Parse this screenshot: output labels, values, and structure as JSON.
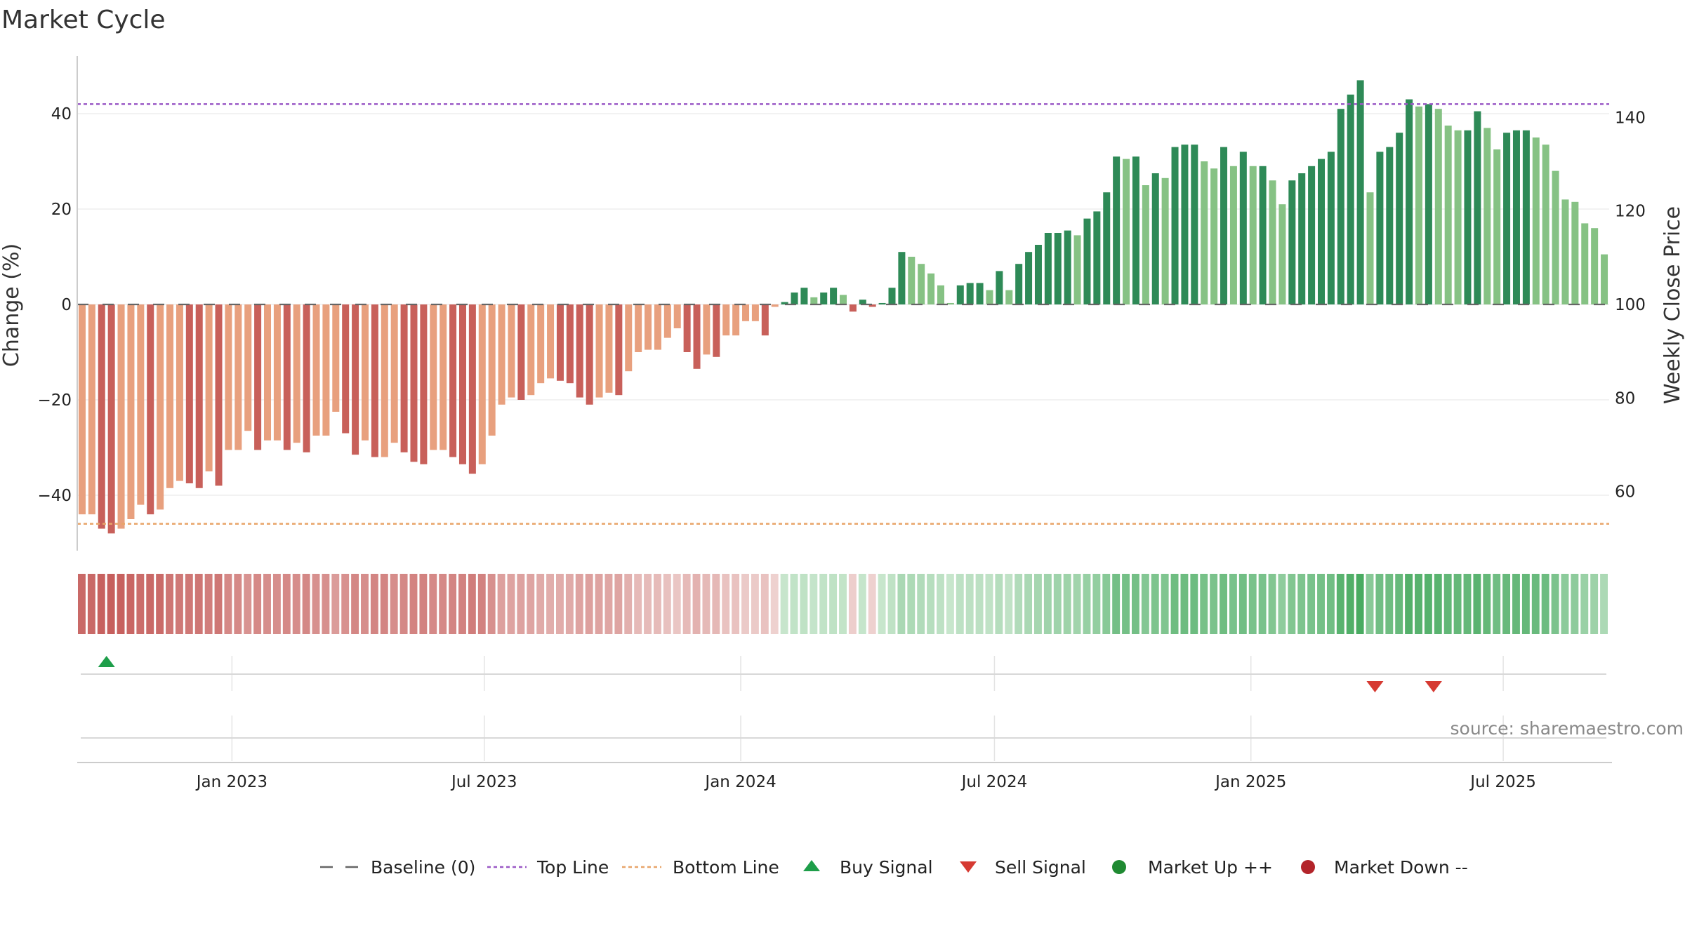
{
  "chart_data": {
    "type": "bar",
    "title": "Market Cycle",
    "ylabel_left": "Change (%)",
    "ylabel_right": "Weekly Close Price",
    "ylim_left": [
      -52,
      52
    ],
    "ylim_right": [
      40,
      160
    ],
    "left_ticks": [
      {
        "value": 40,
        "label": "40"
      },
      {
        "value": 20,
        "label": "20"
      },
      {
        "value": 0,
        "label": "0"
      },
      {
        "value": -20,
        "label": "−20"
      },
      {
        "value": -40,
        "label": "−40"
      }
    ],
    "right_ticks": [
      {
        "value": 140,
        "label": "140"
      },
      {
        "value": 120,
        "label": "120"
      },
      {
        "value": 100,
        "label": "100"
      },
      {
        "value": 80,
        "label": "80"
      },
      {
        "value": 60,
        "label": "60"
      }
    ],
    "x_start": "2022-09-12",
    "x_end": "2025-09-15",
    "x_ticks": [
      {
        "date": "2023-01-01",
        "label": "Jan 2023"
      },
      {
        "date": "2023-07-01",
        "label": "Jul 2023"
      },
      {
        "date": "2024-01-01",
        "label": "Jan 2024"
      },
      {
        "date": "2024-07-01",
        "label": "Jul 2024"
      },
      {
        "date": "2025-01-01",
        "label": "Jan 2025"
      },
      {
        "date": "2025-07-01",
        "label": "Jul 2025"
      }
    ],
    "top_line": 42,
    "bottom_line": -46,
    "baseline": 0,
    "series": [
      {
        "name": "Change (%)",
        "start_date": "2022-09-12",
        "interval": "weekly",
        "values": [
          -44,
          -44,
          -47,
          -48,
          -47,
          -45,
          -42,
          -44,
          -43,
          -38.5,
          -37,
          -37.5,
          -38.5,
          -35,
          -38,
          -30.5,
          -30.5,
          -26.5,
          -30.5,
          -28.5,
          -28.5,
          -30.5,
          -29,
          -31,
          -27.5,
          -27.5,
          -22.5,
          -27,
          -31.5,
          -28.5,
          -32,
          -32,
          -29,
          -31,
          -33,
          -33.5,
          -30.5,
          -30.5,
          -32,
          -33.5,
          -35.5,
          -33.5,
          -27.5,
          -21,
          -19.5,
          -20,
          -19,
          -16.5,
          -15.5,
          -16,
          -16.5,
          -19.5,
          -21,
          -19.5,
          -18.5,
          -19,
          -14,
          -10,
          -9.5,
          -9.5,
          -7,
          -5,
          -10,
          -13.5,
          -10.5,
          -11,
          -6.5,
          -6.5,
          -3.5,
          -3.5,
          -6.5,
          -0.5,
          0.5,
          2.5,
          3.5,
          1.5,
          2.5,
          3.5,
          2,
          -1.5,
          1,
          -0.5,
          0.3,
          3.5,
          11,
          10,
          8.5,
          6.5,
          4,
          0.3,
          4,
          4.5,
          4.5,
          3,
          7,
          3,
          8.5,
          11,
          12.5,
          15,
          15,
          15.5,
          14.5,
          18,
          19.5,
          23.5,
          31,
          30.5,
          31,
          25,
          27.5,
          26.5,
          33,
          33.5,
          33.5,
          30,
          28.5,
          33,
          29,
          32,
          29,
          29,
          26,
          21,
          26,
          27.5,
          29,
          30.5,
          32,
          41,
          44,
          47,
          23.5,
          32,
          33,
          36,
          43,
          41.5,
          42,
          41,
          37.5,
          36.5,
          36.5,
          40.5,
          37,
          32.5,
          36,
          36.5,
          36.5,
          35,
          33.5,
          28,
          22,
          21.5,
          17,
          16,
          10.5
        ]
      }
    ],
    "band_values": [
      -44,
      -44,
      -47,
      -48,
      -47,
      -45,
      -42,
      -44,
      -43,
      -38.5,
      -37,
      -37.5,
      -38.5,
      -35,
      -38,
      -30.5,
      -30.5,
      -26.5,
      -30.5,
      -28.5,
      -28.5,
      -30.5,
      -29,
      -31,
      -27.5,
      -27.5,
      -22.5,
      -27,
      -31.5,
      -28.5,
      -32,
      -32,
      -29,
      -31,
      -33,
      -33.5,
      -30.5,
      -30.5,
      -32,
      -33.5,
      -35.5,
      -33.5,
      -27.5,
      -21,
      -19.5,
      -20,
      -19,
      -16.5,
      -15.5,
      -16,
      -16.5,
      -19.5,
      -21,
      -19.5,
      -18.5,
      -19,
      -14,
      -10,
      -9.5,
      -9.5,
      -7,
      -5,
      -10,
      -13.5,
      -10.5,
      -11,
      -6.5,
      -6.5,
      -3.5,
      -3.5,
      -6.5,
      -0.5,
      0.5,
      2.5,
      3.5,
      1.5,
      2.5,
      3.5,
      2,
      -1.5,
      1,
      -0.5,
      0.3,
      3.5,
      11,
      10,
      8.5,
      6.5,
      4,
      0.3,
      4,
      4.5,
      4.5,
      3,
      7,
      3,
      8.5,
      11,
      12.5,
      15,
      15,
      15.5,
      14.5,
      18,
      19.5,
      23.5,
      31,
      30.5,
      31,
      25,
      27.5,
      26.5,
      33,
      33.5,
      33.5,
      30,
      28.5,
      33,
      29,
      32,
      29,
      29,
      26,
      21,
      26,
      27.5,
      29,
      30.5,
      32,
      41,
      44,
      47,
      23.5,
      32,
      33,
      36,
      43,
      41.5,
      42,
      41,
      37.5,
      36.5,
      36.5,
      40.5,
      37,
      32.5,
      36,
      36.5,
      36.5,
      35,
      33.5,
      28,
      22,
      21.5,
      17,
      16,
      10.5
    ],
    "buy_signals": [
      "2022-10-03"
    ],
    "sell_signals": [
      "2025-03-31",
      "2025-05-12"
    ],
    "legend": [
      {
        "kind": "dash",
        "label": "Baseline (0)"
      },
      {
        "kind": "dotted-purple",
        "label": "Top Line"
      },
      {
        "kind": "dotted-orange",
        "label": "Bottom Line"
      },
      {
        "kind": "triangle-up",
        "label": "Buy Signal"
      },
      {
        "kind": "triangle-down",
        "label": "Sell Signal"
      },
      {
        "kind": "dot-green",
        "label": "Market Up ++"
      },
      {
        "kind": "dot-red",
        "label": "Market Down --"
      }
    ],
    "legend_position": "bottom-center",
    "grid": true,
    "source": "source: sharemaestro.com",
    "colors": {
      "neg_dark": "#c8605a",
      "neg_light": "#e8a07e",
      "pos_dark": "#2e8a57",
      "pos_light": "#86c284",
      "top_line": "#9b59c6",
      "bottom_line": "#e8a56a",
      "baseline": "#666666",
      "buy": "#1e9e4a",
      "sell": "#d63a32",
      "market_up": "#1f8a32",
      "market_down": "#b3242a"
    }
  }
}
